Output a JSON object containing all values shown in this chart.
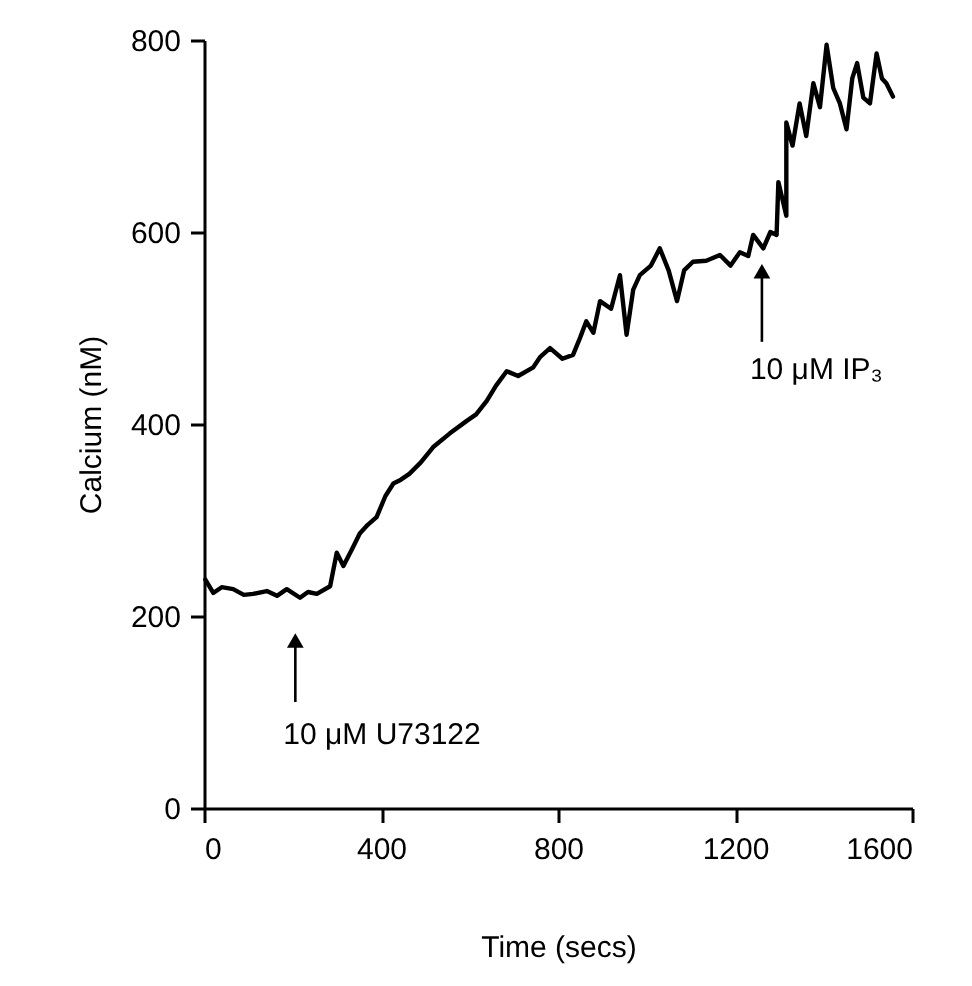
{
  "chart_data": {
    "type": "line",
    "xlabel": "Time (secs)",
    "ylabel": "Calcium (nM)",
    "x": [
      3,
      21,
      40,
      66,
      90,
      111,
      142,
      165,
      187,
      217,
      235,
      255,
      285,
      300,
      315,
      335,
      352,
      370,
      390,
      410,
      428,
      445,
      464,
      490,
      518,
      555,
      593,
      615,
      639,
      660,
      684,
      710,
      744,
      760,
      782,
      810,
      834,
      850,
      864,
      880,
      895,
      920,
      940,
      955,
      970,
      985,
      1010,
      1030,
      1050,
      1069,
      1085,
      1105,
      1135,
      1166,
      1190,
      1211,
      1230,
      1241,
      1264,
      1280,
      1294,
      1298,
      1316,
      1316,
      1330,
      1346,
      1361,
      1377,
      1392,
      1407,
      1422,
      1437,
      1452,
      1465,
      1476,
      1490,
      1505,
      1520,
      1532,
      1542,
      1557
    ],
    "series": [
      {
        "color": "#000000",
        "values": [
          238,
          224,
          230,
          228,
          222,
          223,
          226,
          221,
          228,
          219,
          225,
          223,
          231,
          266,
          252,
          270,
          286,
          295,
          303,
          325,
          338,
          342,
          348,
          360,
          376,
          390,
          403,
          410,
          424,
          440,
          455,
          450,
          459,
          470,
          479,
          468,
          472,
          490,
          507,
          495,
          528,
          520,
          555,
          493,
          540,
          555,
          565,
          583,
          560,
          528,
          560,
          569,
          570,
          576,
          565,
          579,
          575,
          597,
          583,
          600,
          597,
          652,
          617,
          714,
          690,
          734,
          700,
          755,
          730,
          795,
          750,
          734,
          707,
          760,
          776,
          740,
          734,
          786,
          760,
          755,
          741
        ]
      }
    ],
    "xlim": [
      0,
      1600
    ],
    "xticks": [
      0,
      400,
      800,
      1200,
      1600
    ],
    "ylim": [
      0,
      800
    ],
    "yticks": [
      0,
      200,
      400,
      600,
      800
    ],
    "annotations": [
      "10 μM U73122",
      "10 μM IP₃"
    ]
  }
}
